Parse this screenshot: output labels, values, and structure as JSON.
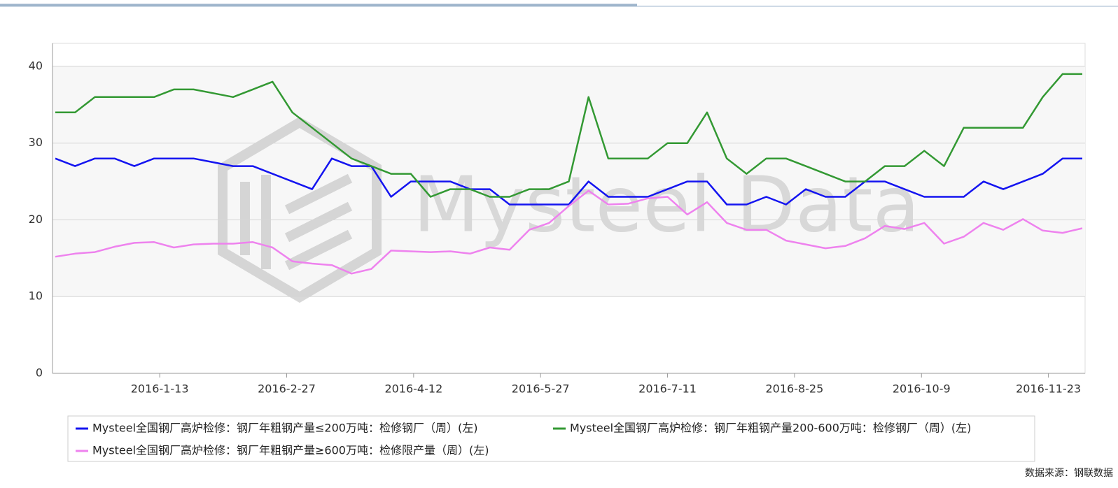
{
  "chart_data": {
    "type": "line",
    "watermark": "Mysteel Data",
    "source": "数据来源：钢联数据",
    "x": [
      "2015-12-7",
      "2015-12-14",
      "2015-12-21",
      "2015-12-28",
      "2016-1-4",
      "2016-1-11",
      "2016-1-18",
      "2016-1-25",
      "2016-2-1",
      "2016-2-8",
      "2016-2-15",
      "2016-2-22",
      "2016-2-29",
      "2016-3-7",
      "2016-3-14",
      "2016-3-21",
      "2016-3-28",
      "2016-4-4",
      "2016-4-11",
      "2016-4-18",
      "2016-4-25",
      "2016-5-2",
      "2016-5-9",
      "2016-5-16",
      "2016-5-23",
      "2016-5-30",
      "2016-6-6",
      "2016-6-13",
      "2016-6-20",
      "2016-6-27",
      "2016-7-4",
      "2016-7-11",
      "2016-7-18",
      "2016-7-25",
      "2016-8-1",
      "2016-8-8",
      "2016-8-15",
      "2016-8-22",
      "2016-8-29",
      "2016-9-5",
      "2016-9-12",
      "2016-9-19",
      "2016-9-26",
      "2016-10-3",
      "2016-10-10",
      "2016-10-17",
      "2016-10-24",
      "2016-10-31",
      "2016-11-7",
      "2016-11-14",
      "2016-11-21",
      "2016-11-28",
      "2016-12-5"
    ],
    "series": [
      {
        "name": "Mysteel全国钢厂高炉检修：钢厂年粗钢产量≤200万吨：检修钢厂（周）(左)",
        "color": "#1414f0",
        "values": [
          28,
          27,
          28,
          28,
          27,
          28,
          28,
          28,
          27.5,
          27,
          27,
          26,
          25,
          24,
          28,
          27,
          27,
          23,
          25,
          25,
          25,
          24,
          24,
          22,
          22,
          22,
          22,
          25,
          23,
          23,
          23,
          24,
          25,
          25,
          22,
          22,
          23,
          22,
          24,
          23,
          23,
          25,
          25,
          24,
          23,
          23,
          23,
          25,
          24,
          25,
          26,
          28,
          28
        ]
      },
      {
        "name": "Mysteel全国钢厂高炉检修：钢厂年粗钢产量200-600万吨：检修钢厂（周）(左)",
        "color": "#339933",
        "values": [
          34,
          34,
          36,
          36,
          36,
          36,
          37,
          37,
          36.5,
          36,
          37,
          38,
          34,
          32,
          30,
          28,
          27,
          26,
          26,
          23,
          24,
          24,
          23,
          23,
          24,
          24,
          25,
          36,
          28,
          28,
          28,
          30,
          30,
          34,
          28,
          26,
          28,
          28,
          27,
          26,
          25,
          25,
          27,
          27,
          29,
          27,
          32,
          32,
          32,
          32,
          36,
          39,
          39
        ]
      },
      {
        "name": "Mysteel全国钢厂高炉检修：钢厂年粗钢产量≥600万吨：检修限产量（周）(左)",
        "color": "#ee82ee",
        "values": [
          15.2,
          15.6,
          15.8,
          16.5,
          17,
          17.1,
          16.4,
          16.8,
          16.9,
          16.9,
          17.1,
          16.4,
          14.6,
          14.3,
          14.1,
          13,
          13.6,
          16,
          15.9,
          15.8,
          15.9,
          15.6,
          16.4,
          16.1,
          18.7,
          19.6,
          21.8,
          23.8,
          22,
          22.1,
          22.8,
          23,
          20.7,
          22.3,
          19.6,
          18.7,
          18.7,
          17.3,
          16.8,
          16.3,
          16.6,
          17.6,
          19.2,
          18.8,
          19.6,
          16.9,
          17.8,
          19.6,
          18.7,
          20.1,
          18.6,
          18.3,
          18.9
        ]
      }
    ],
    "xlim": [
      "2015-12-6",
      "2016-12-6"
    ],
    "xticks": [
      "2016-1-13",
      "2016-2-27",
      "2016-4-12",
      "2016-5-27",
      "2016-7-11",
      "2016-8-25",
      "2016-10-9",
      "2016-11-23"
    ],
    "ylim": [
      0,
      43
    ],
    "yticks": [
      0,
      10,
      20,
      30,
      40
    ],
    "grid": true
  }
}
